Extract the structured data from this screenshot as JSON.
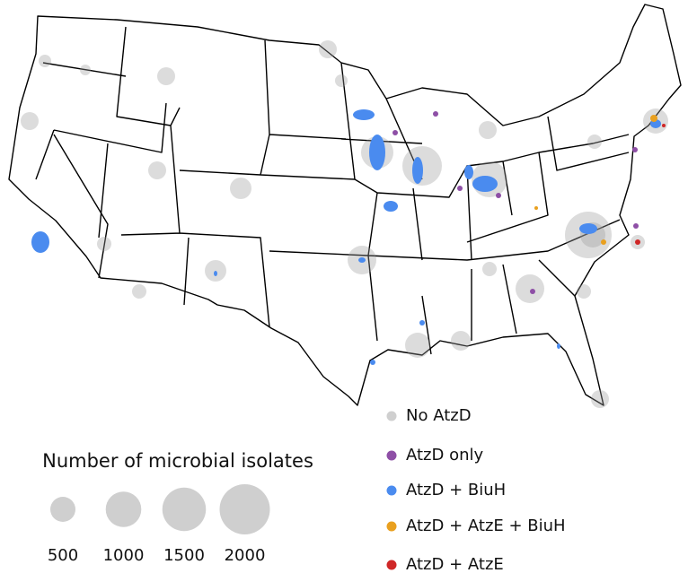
{
  "legend": {
    "categories": [
      {
        "label": "No AtzD",
        "color": "#cfcfcf"
      },
      {
        "label": "AtzD only",
        "color": "#8e4fa6"
      },
      {
        "label": "AtzD + BiuH",
        "color": "#4a8bef"
      },
      {
        "label": "AtzD + AtzE + BiuH",
        "color": "#e9a01f"
      },
      {
        "label": "AtzD + AtzE",
        "color": "#cf2727"
      }
    ]
  },
  "size_legend": {
    "title": "Number of microbial isolates",
    "values": [
      500,
      1000,
      1500,
      2000
    ],
    "color": "#cfcfcf"
  }
}
